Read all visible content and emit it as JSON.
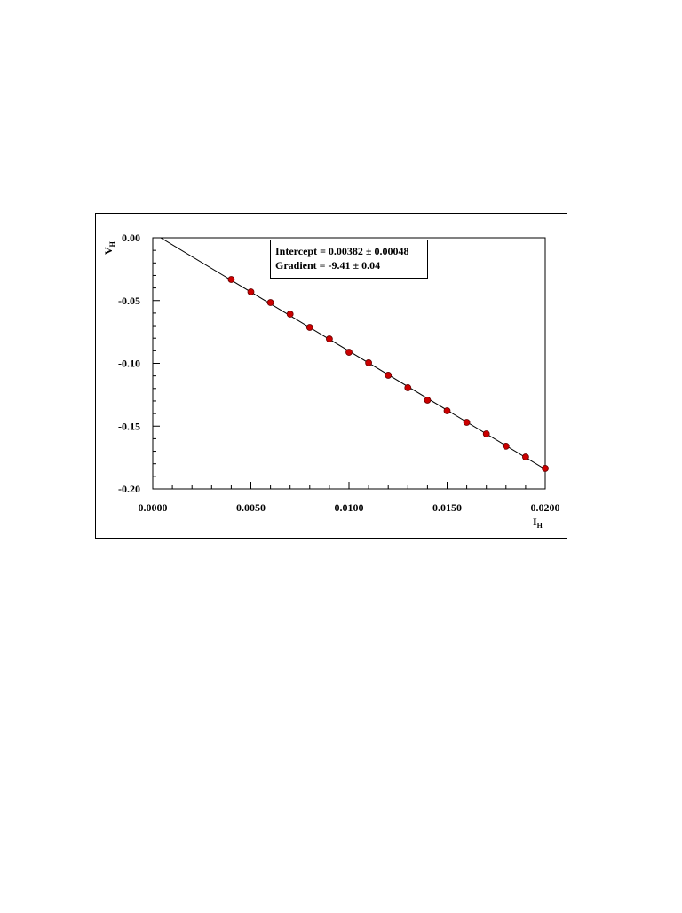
{
  "chart_data": {
    "type": "scatter",
    "xlabel": "I",
    "xlabel_sub": "H",
    "ylabel": "V",
    "ylabel_sub": "H",
    "x": [
      0.004,
      0.005,
      0.006,
      0.007,
      0.008,
      0.009,
      0.01,
      0.011,
      0.012,
      0.013,
      0.014,
      0.015,
      0.016,
      0.017,
      0.018,
      0.019,
      0.02
    ],
    "values": [
      -0.0332,
      -0.0431,
      -0.0516,
      -0.0608,
      -0.0714,
      -0.0806,
      -0.0912,
      -0.0996,
      -0.1095,
      -0.1194,
      -0.1293,
      -0.1378,
      -0.147,
      -0.1562,
      -0.166,
      -0.1746,
      -0.1837
    ],
    "color": "#cc0000",
    "fit": {
      "intercept": 0.00382,
      "gradient": -9.41,
      "color": "#000000"
    },
    "annotations": [
      "Intercept = 0.00382 ± 0.00048",
      "Gradient = -9.41 ± 0.04"
    ],
    "xlim": [
      0,
      0.02
    ],
    "ylim": [
      -0.2,
      0
    ],
    "xticks": [
      {
        "value": 0,
        "label": "0.0000"
      },
      {
        "value": 0.005,
        "label": "0.0050"
      },
      {
        "value": 0.01,
        "label": "0.0100"
      },
      {
        "value": 0.015,
        "label": "0.0150"
      },
      {
        "value": 0.02,
        "label": "0.0200"
      }
    ],
    "yticks": [
      {
        "value": 0,
        "label": "0.00"
      },
      {
        "value": -0.05,
        "label": "-0.05"
      },
      {
        "value": -0.1,
        "label": "-0.10"
      },
      {
        "value": -0.15,
        "label": "-0.15"
      },
      {
        "value": -0.2,
        "label": "-0.20"
      }
    ],
    "xminorticks": [
      0.001,
      0.002,
      0.003,
      0.004,
      0.006,
      0.007,
      0.008,
      0.009,
      0.011,
      0.012,
      0.013,
      0.014,
      0.016,
      0.017,
      0.018,
      0.019
    ],
    "yminorticks": [
      -0.01,
      -0.02,
      -0.03,
      -0.04,
      -0.06,
      -0.07,
      -0.08,
      -0.09,
      -0.11,
      -0.12,
      -0.13,
      -0.14,
      -0.16,
      -0.17,
      -0.18,
      -0.19
    ]
  }
}
